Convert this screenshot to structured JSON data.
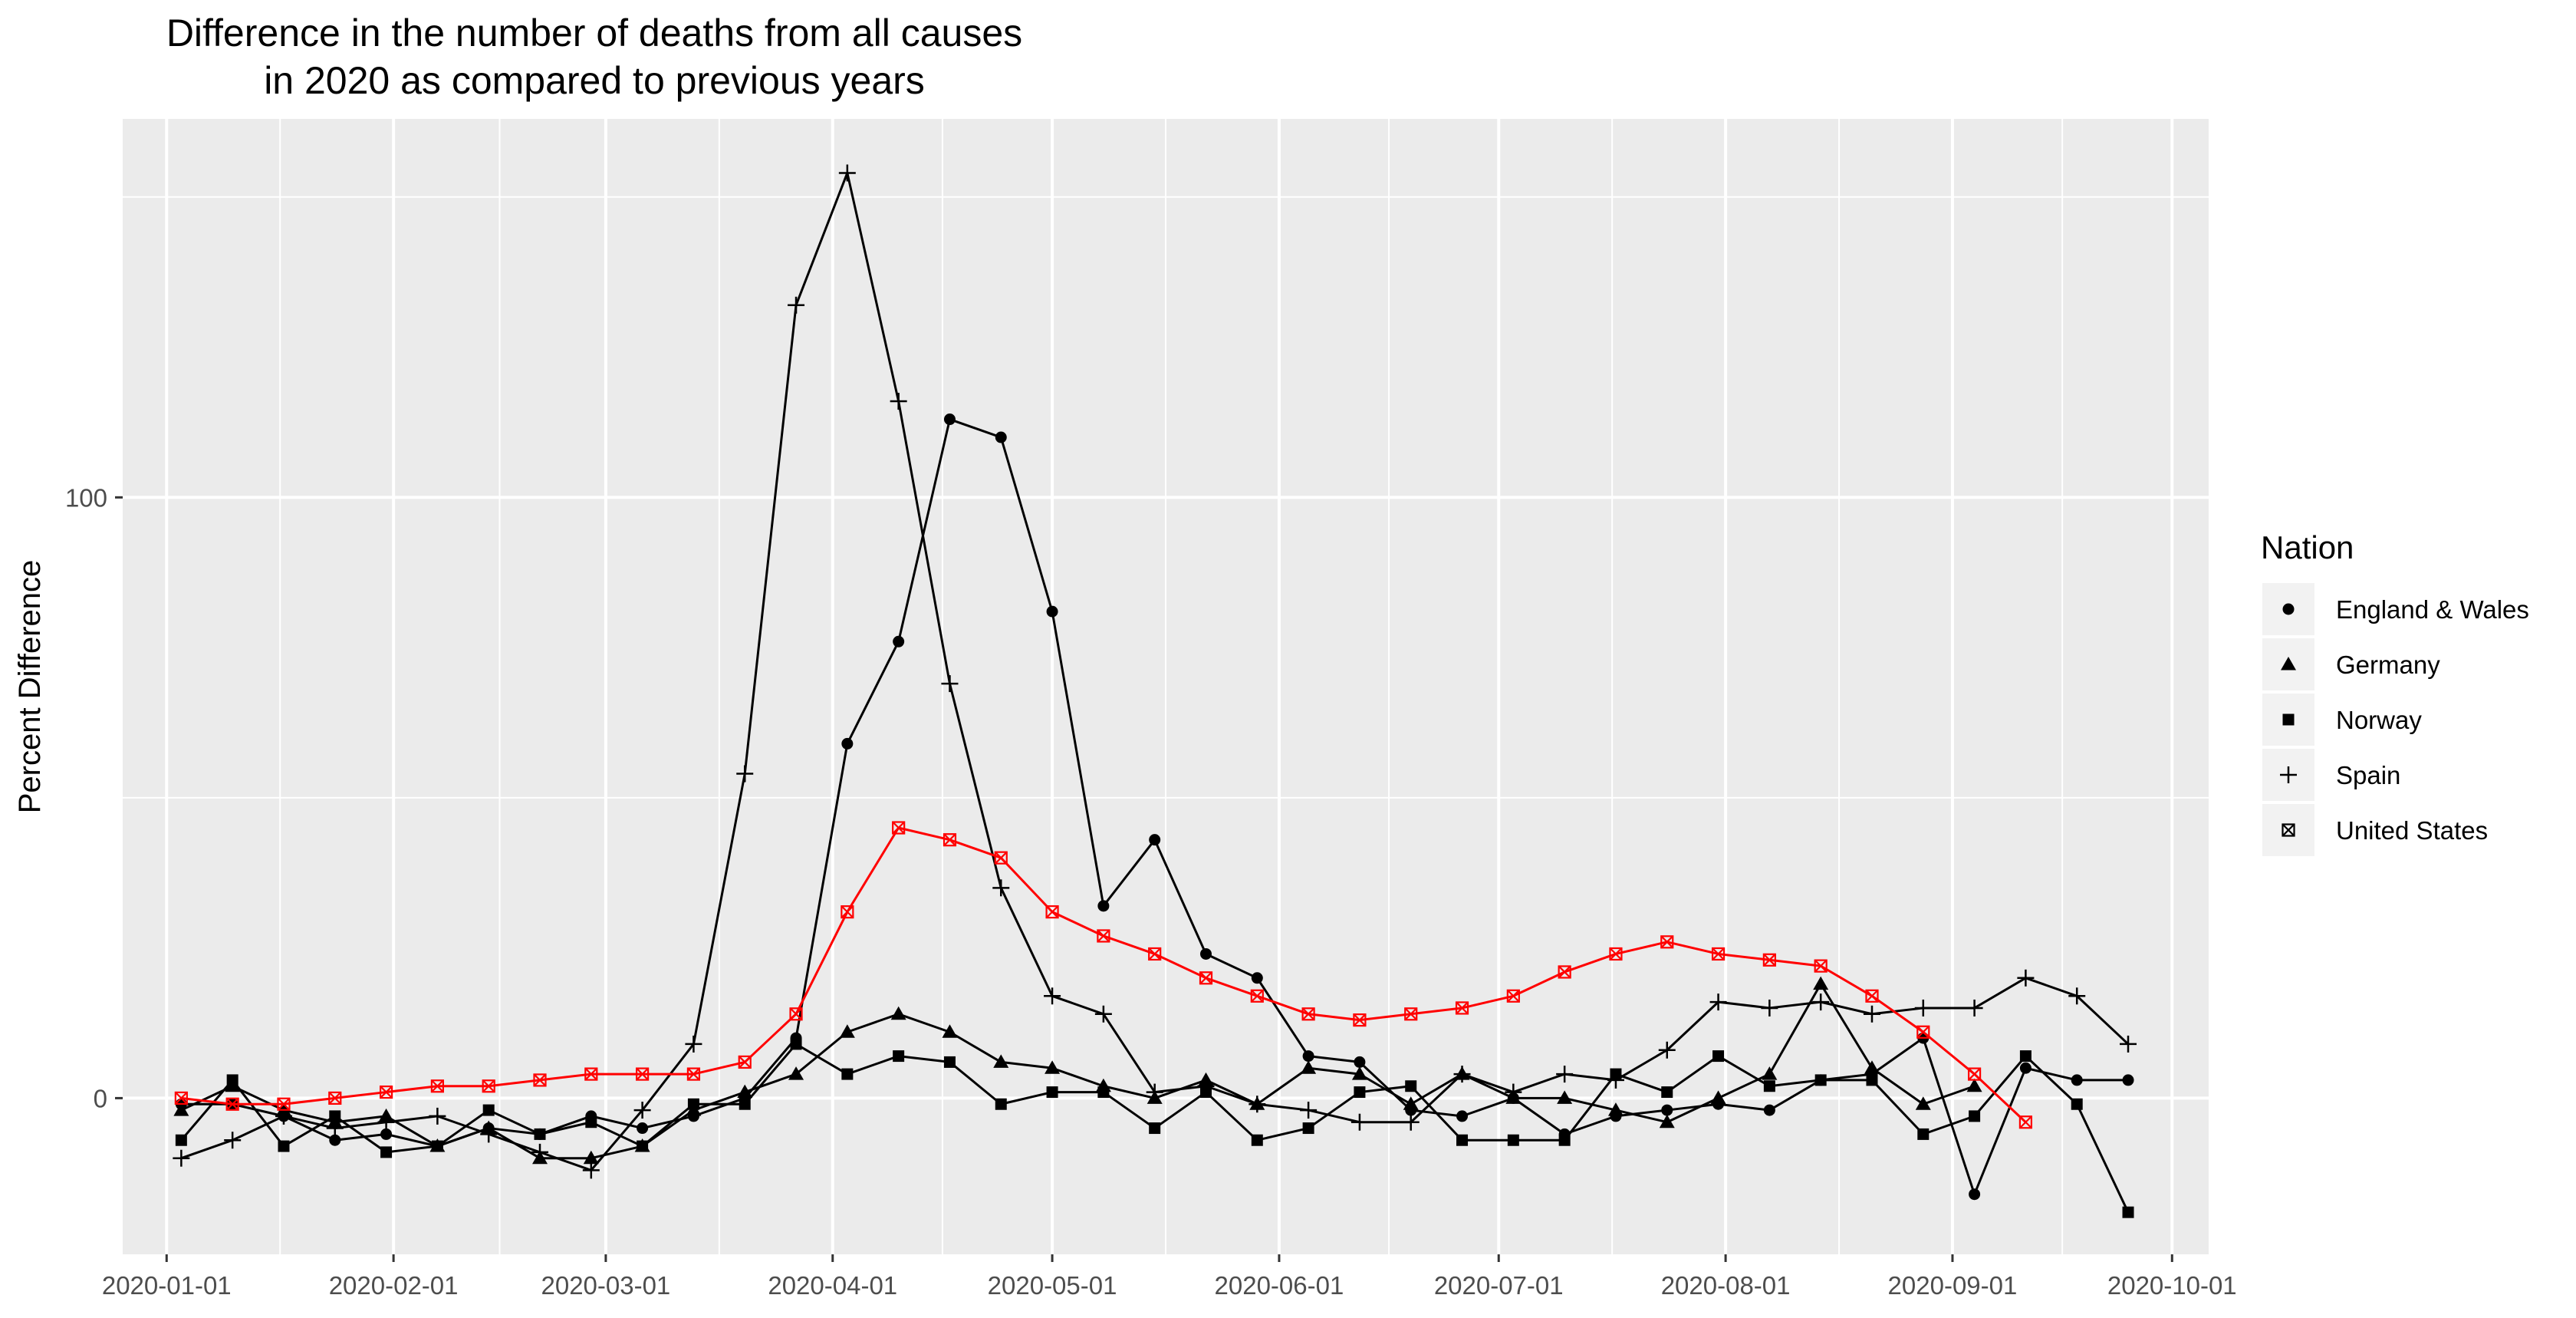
{
  "chart_data": {
    "type": "line",
    "title": [
      "Difference in the number of deaths from all causes",
      "in 2020 as compared to previous years"
    ],
    "xlabel": "",
    "ylabel": "Percent Difference",
    "x_ticks": [
      "2020-01-01",
      "2020-02-01",
      "2020-03-01",
      "2020-04-01",
      "2020-05-01",
      "2020-06-01",
      "2020-07-01",
      "2020-08-01",
      "2020-09-01",
      "2020-10-01"
    ],
    "y_ticks": [
      0,
      100
    ],
    "xlim": [
      "2019-12-26",
      "2020-10-06"
    ],
    "ylim": [
      -26,
      163
    ],
    "grid": true,
    "legend": {
      "title": "Nation",
      "position": "right"
    },
    "series": [
      {
        "name": "England & Wales",
        "color": "#000000",
        "marker": "circle",
        "x": [
          "2020-01-03",
          "2020-01-10",
          "2020-01-17",
          "2020-01-24",
          "2020-01-31",
          "2020-02-07",
          "2020-02-14",
          "2020-02-21",
          "2020-02-28",
          "2020-03-06",
          "2020-03-13",
          "2020-03-20",
          "2020-03-27",
          "2020-04-03",
          "2020-04-10",
          "2020-04-17",
          "2020-04-24",
          "2020-05-01",
          "2020-05-08",
          "2020-05-15",
          "2020-05-22",
          "2020-05-29",
          "2020-06-05",
          "2020-06-12",
          "2020-06-19",
          "2020-06-26",
          "2020-07-03",
          "2020-07-10",
          "2020-07-17",
          "2020-07-24",
          "2020-07-31",
          "2020-08-07",
          "2020-08-14",
          "2020-08-21",
          "2020-08-28",
          "2020-09-04",
          "2020-09-11",
          "2020-09-18",
          "2020-09-25"
        ],
        "values": [
          -1,
          -1,
          -3,
          -7,
          -6,
          -8,
          -5,
          -6,
          -3,
          -5,
          -3,
          0,
          10,
          59,
          76,
          113,
          110,
          81,
          32,
          43,
          24,
          20,
          7,
          6,
          -2,
          -3,
          0,
          -6,
          -3,
          -2,
          -1,
          -2,
          3,
          4,
          10,
          -16,
          5,
          3,
          3
        ]
      },
      {
        "name": "Germany",
        "color": "#000000",
        "marker": "triangle",
        "x": [
          "2020-01-03",
          "2020-01-10",
          "2020-01-17",
          "2020-01-24",
          "2020-01-31",
          "2020-02-07",
          "2020-02-14",
          "2020-02-21",
          "2020-02-28",
          "2020-03-06",
          "2020-03-13",
          "2020-03-20",
          "2020-03-27",
          "2020-04-03",
          "2020-04-10",
          "2020-04-17",
          "2020-04-24",
          "2020-05-01",
          "2020-05-08",
          "2020-05-15",
          "2020-05-22",
          "2020-05-29",
          "2020-06-05",
          "2020-06-12",
          "2020-06-19",
          "2020-06-26",
          "2020-07-03",
          "2020-07-10",
          "2020-07-17",
          "2020-07-24",
          "2020-07-31",
          "2020-08-07",
          "2020-08-14",
          "2020-08-21",
          "2020-08-28",
          "2020-09-04"
        ],
        "values": [
          -2,
          2,
          -2,
          -4,
          -3,
          -8,
          -5,
          -10,
          -10,
          -8,
          -2,
          1,
          4,
          11,
          14,
          11,
          6,
          5,
          2,
          0,
          3,
          -1,
          5,
          4,
          -1,
          4,
          0,
          0,
          -2,
          -4,
          0,
          4,
          19,
          5,
          -1,
          2
        ]
      },
      {
        "name": "Norway",
        "color": "#000000",
        "marker": "square",
        "x": [
          "2020-01-03",
          "2020-01-10",
          "2020-01-17",
          "2020-01-24",
          "2020-01-31",
          "2020-02-07",
          "2020-02-14",
          "2020-02-21",
          "2020-02-28",
          "2020-03-06",
          "2020-03-13",
          "2020-03-20",
          "2020-03-27",
          "2020-04-03",
          "2020-04-10",
          "2020-04-17",
          "2020-04-24",
          "2020-05-01",
          "2020-05-08",
          "2020-05-15",
          "2020-05-22",
          "2020-05-29",
          "2020-06-05",
          "2020-06-12",
          "2020-06-19",
          "2020-06-26",
          "2020-07-03",
          "2020-07-10",
          "2020-07-17",
          "2020-07-24",
          "2020-07-31",
          "2020-08-07",
          "2020-08-14",
          "2020-08-21",
          "2020-08-28",
          "2020-09-04",
          "2020-09-11",
          "2020-09-18",
          "2020-09-25"
        ],
        "values": [
          -7,
          3,
          -8,
          -3,
          -9,
          -8,
          -2,
          -6,
          -4,
          -8,
          -1,
          -1,
          9,
          4,
          7,
          6,
          -1,
          1,
          1,
          -5,
          1,
          -7,
          -5,
          1,
          2,
          -7,
          -7,
          -7,
          4,
          1,
          7,
          2,
          3,
          3,
          -6,
          -3,
          7,
          -1,
          -19
        ]
      },
      {
        "name": "Spain",
        "color": "#000000",
        "marker": "plus",
        "x": [
          "2020-01-03",
          "2020-01-10",
          "2020-01-17",
          "2020-01-24",
          "2020-01-31",
          "2020-02-07",
          "2020-02-14",
          "2020-02-21",
          "2020-02-28",
          "2020-03-06",
          "2020-03-13",
          "2020-03-20",
          "2020-03-27",
          "2020-04-03",
          "2020-04-10",
          "2020-04-17",
          "2020-04-24",
          "2020-05-01",
          "2020-05-08",
          "2020-05-15",
          "2020-05-22",
          "2020-05-29",
          "2020-06-05",
          "2020-06-12",
          "2020-06-19",
          "2020-06-26",
          "2020-07-03",
          "2020-07-10",
          "2020-07-17",
          "2020-07-24",
          "2020-07-31",
          "2020-08-07",
          "2020-08-14",
          "2020-08-21",
          "2020-08-28",
          "2020-09-04",
          "2020-09-11",
          "2020-09-18",
          "2020-09-25"
        ],
        "values": [
          -10,
          -7,
          -3,
          -5,
          -4,
          -3,
          -6,
          -9,
          -12,
          -2,
          9,
          54,
          132,
          154,
          116,
          69,
          35,
          17,
          14,
          1,
          2,
          -1,
          -2,
          -4,
          -4,
          4,
          1,
          4,
          3,
          8,
          16,
          15,
          16,
          14,
          15,
          15,
          20,
          17,
          9
        ]
      },
      {
        "name": "United States",
        "color": "#ff0000",
        "marker": "square-cross",
        "x": [
          "2020-01-03",
          "2020-01-10",
          "2020-01-17",
          "2020-01-24",
          "2020-01-31",
          "2020-02-07",
          "2020-02-14",
          "2020-02-21",
          "2020-02-28",
          "2020-03-06",
          "2020-03-13",
          "2020-03-20",
          "2020-03-27",
          "2020-04-03",
          "2020-04-10",
          "2020-04-17",
          "2020-04-24",
          "2020-05-01",
          "2020-05-08",
          "2020-05-15",
          "2020-05-22",
          "2020-05-29",
          "2020-06-05",
          "2020-06-12",
          "2020-06-19",
          "2020-06-26",
          "2020-07-03",
          "2020-07-10",
          "2020-07-17",
          "2020-07-24",
          "2020-07-31",
          "2020-08-07",
          "2020-08-14",
          "2020-08-21",
          "2020-08-28",
          "2020-09-04",
          "2020-09-11"
        ],
        "values": [
          0,
          -1,
          -1,
          0,
          1,
          2,
          2,
          3,
          4,
          4,
          4,
          6,
          14,
          31,
          45,
          43,
          40,
          31,
          27,
          24,
          20,
          17,
          14,
          13,
          14,
          15,
          17,
          21,
          24,
          26,
          24,
          23,
          22,
          17,
          11,
          4,
          -4
        ]
      }
    ]
  }
}
